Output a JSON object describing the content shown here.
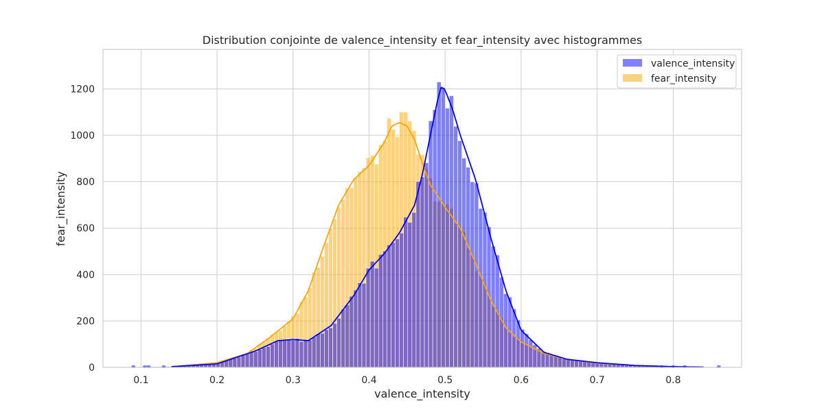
{
  "chart_data": {
    "type": "bar",
    "title": "Distribution conjointe de valence_intensity et fear_intensity avec histogrammes",
    "xlabel": "valence_intensity",
    "ylabel": "fear_intensity",
    "xlim": [
      0.05,
      0.89
    ],
    "ylim": [
      0,
      1370
    ],
    "x_ticks": [
      0.1,
      0.2,
      0.3,
      0.4,
      0.5,
      0.6,
      0.7,
      0.8
    ],
    "x_tick_labels": [
      "0.1",
      "0.2",
      "0.3",
      "0.4",
      "0.5",
      "0.6",
      "0.7",
      "0.8"
    ],
    "y_ticks": [
      0,
      200,
      400,
      600,
      800,
      1000,
      1200
    ],
    "y_tick_labels": [
      "0",
      "200",
      "400",
      "600",
      "800",
      "1000",
      "1200"
    ],
    "grid": true,
    "legend_position": "top-right",
    "colors": {
      "valence": "#0000ff",
      "fear": "#ffa500",
      "grid": "#cccccc",
      "spine": "#cccccc"
    },
    "bin_range": [
      0.1,
      0.84
    ],
    "series": [
      {
        "name": "valence_intensity",
        "kind": "histogram+kde",
        "kde": {
          "x": [
            0.14,
            0.2,
            0.25,
            0.28,
            0.3,
            0.32,
            0.35,
            0.38,
            0.4,
            0.42,
            0.44,
            0.46,
            0.47,
            0.48,
            0.49,
            0.495,
            0.5,
            0.51,
            0.52,
            0.54,
            0.56,
            0.58,
            0.6,
            0.63,
            0.66,
            0.7,
            0.75,
            0.8,
            0.84
          ],
          "y": [
            3,
            15,
            70,
            115,
            120,
            115,
            180,
            310,
            420,
            490,
            580,
            700,
            830,
            990,
            1150,
            1210,
            1195,
            1110,
            1000,
            810,
            560,
            330,
            160,
            65,
            35,
            20,
            8,
            3,
            1
          ]
        }
      },
      {
        "name": "fear_intensity",
        "kind": "histogram+kde",
        "kde": {
          "x": [
            0.14,
            0.2,
            0.24,
            0.27,
            0.3,
            0.32,
            0.34,
            0.36,
            0.38,
            0.4,
            0.42,
            0.43,
            0.44,
            0.45,
            0.46,
            0.47,
            0.48,
            0.5,
            0.52,
            0.54,
            0.56,
            0.58,
            0.6,
            0.63,
            0.66,
            0.7,
            0.75,
            0.8,
            0.84
          ],
          "y": [
            3,
            20,
            60,
            130,
            210,
            330,
            520,
            700,
            810,
            870,
            970,
            1040,
            1055,
            1040,
            980,
            880,
            790,
            690,
            600,
            450,
            290,
            170,
            110,
            60,
            35,
            18,
            8,
            3,
            1
          ]
        }
      }
    ]
  }
}
